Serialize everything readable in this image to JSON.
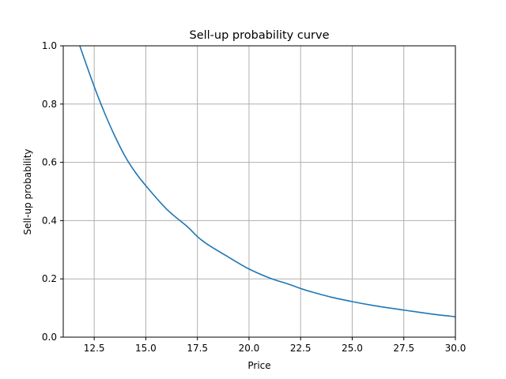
{
  "chart_data": {
    "type": "line",
    "title": "Sell-up probability curve",
    "xlabel": "Price",
    "ylabel": "Sell-up probability",
    "xlim": [
      11.0,
      30.0
    ],
    "ylim": [
      0.0,
      1.0
    ],
    "xticks": [
      12.5,
      15.0,
      17.5,
      20.0,
      22.5,
      25.0,
      27.5,
      30.0
    ],
    "xtick_labels": [
      "12.5",
      "15.0",
      "17.5",
      "20.0",
      "22.5",
      "25.0",
      "27.5",
      "30.0"
    ],
    "yticks": [
      0.0,
      0.2,
      0.4,
      0.6,
      0.8,
      1.0
    ],
    "ytick_labels": [
      "0.0",
      "0.2",
      "0.4",
      "0.6",
      "0.8",
      "1.0"
    ],
    "grid": true,
    "series": [
      {
        "color": "#1f77b4",
        "x": [
          11.8,
          12.5,
          13.0,
          13.5,
          14.0,
          14.5,
          15.0,
          16.0,
          17.0,
          17.5,
          18.0,
          19.0,
          20.0,
          21.0,
          22.0,
          22.5,
          23.0,
          24.0,
          25.0,
          26.0,
          27.0,
          27.5,
          28.0,
          29.0,
          30.0
        ],
        "y": [
          1.0,
          0.86,
          0.77,
          0.69,
          0.62,
          0.565,
          0.52,
          0.44,
          0.38,
          0.345,
          0.318,
          0.275,
          0.234,
          0.203,
          0.18,
          0.167,
          0.156,
          0.137,
          0.122,
          0.109,
          0.098,
          0.093,
          0.088,
          0.078,
          0.07
        ]
      }
    ]
  }
}
